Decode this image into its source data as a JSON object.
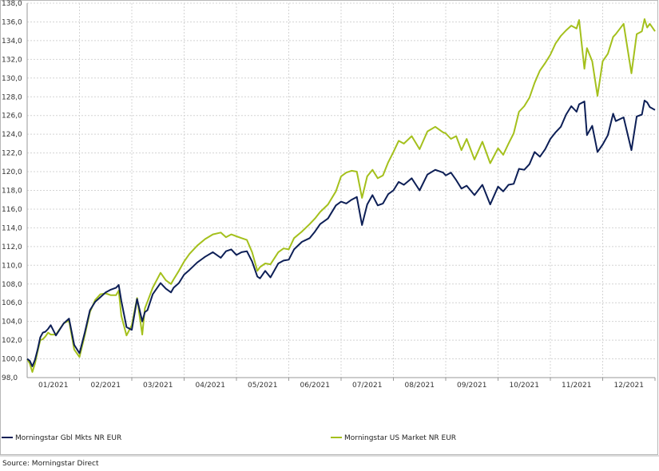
{
  "chart_data": {
    "type": "line",
    "title": "",
    "xlabel": "",
    "ylabel": "",
    "ylim": [
      98.0,
      138.0
    ],
    "ytick_labels": [
      "98,0",
      "100,0",
      "102,0",
      "104,0",
      "106,0",
      "108,0",
      "110,0",
      "112,0",
      "114,0",
      "116,0",
      "118,0",
      "120,0",
      "122,0",
      "124,0",
      "126,0",
      "128,0",
      "130,0",
      "132,0",
      "134,0",
      "136,0",
      "138,0"
    ],
    "xtick_labels": [
      "01/2021",
      "02/2021",
      "03/2021",
      "04/2021",
      "05/2021",
      "06/2021",
      "07/2021",
      "08/2021",
      "09/2021",
      "10/2021",
      "11/2021",
      "12/2021"
    ],
    "grid": true,
    "legend_position": "bottom",
    "x_units": "months (0 = start of January 2021, 12 = end of December 2021)",
    "series": [
      {
        "name": "Morningstar Gbl Mkts NR EUR",
        "color": "#0d1f56",
        "x": [
          0.0,
          0.05,
          0.1,
          0.15,
          0.2,
          0.25,
          0.3,
          0.35,
          0.4,
          0.45,
          0.55,
          0.7,
          0.8,
          0.9,
          1.0,
          1.1,
          1.2,
          1.3,
          1.4,
          1.5,
          1.6,
          1.7,
          1.75,
          1.8,
          1.9,
          2.0,
          2.1,
          2.2,
          2.25,
          2.3,
          2.4,
          2.55,
          2.65,
          2.75,
          2.8,
          2.9,
          3.0,
          3.1,
          3.25,
          3.4,
          3.55,
          3.7,
          3.8,
          3.9,
          4.0,
          4.1,
          4.2,
          4.3,
          4.4,
          4.45,
          4.55,
          4.65,
          4.8,
          4.9,
          5.0,
          5.1,
          5.25,
          5.4,
          5.5,
          5.6,
          5.75,
          5.9,
          6.0,
          6.1,
          6.2,
          6.3,
          6.4,
          6.5,
          6.6,
          6.7,
          6.8,
          6.9,
          7.0,
          7.1,
          7.2,
          7.35,
          7.5,
          7.65,
          7.8,
          7.95,
          8.0,
          8.1,
          8.2,
          8.3,
          8.4,
          8.55,
          8.7,
          8.85,
          9.0,
          9.1,
          9.2,
          9.3,
          9.4,
          9.5,
          9.6,
          9.7,
          9.8,
          9.9,
          10.0,
          10.1,
          10.2,
          10.3,
          10.4,
          10.5,
          10.55,
          10.65,
          10.7,
          10.8,
          10.9,
          11.0,
          11.1,
          11.2,
          11.25,
          11.4,
          11.55,
          11.65,
          11.75,
          11.8,
          11.85,
          11.9,
          12.0
        ],
        "values": [
          100.0,
          99.8,
          99.2,
          99.9,
          101.0,
          102.3,
          102.8,
          102.9,
          103.2,
          103.6,
          102.5,
          103.8,
          104.3,
          101.5,
          100.6,
          102.8,
          105.2,
          106.1,
          106.6,
          107.1,
          107.4,
          107.6,
          107.9,
          106.2,
          103.4,
          103.1,
          106.4,
          104.0,
          105.0,
          105.2,
          106.9,
          108.1,
          107.5,
          107.1,
          107.6,
          108.1,
          109.0,
          109.5,
          110.3,
          110.9,
          111.4,
          110.8,
          111.5,
          111.7,
          111.1,
          111.4,
          111.5,
          110.4,
          108.8,
          108.6,
          109.4,
          108.7,
          110.2,
          110.5,
          110.6,
          111.7,
          112.5,
          112.9,
          113.6,
          114.4,
          115.0,
          116.4,
          116.8,
          116.6,
          117.0,
          117.3,
          114.3,
          116.5,
          117.5,
          116.4,
          116.6,
          117.6,
          118.0,
          118.9,
          118.6,
          119.3,
          118.0,
          119.7,
          120.2,
          119.9,
          119.6,
          119.9,
          119.1,
          118.2,
          118.5,
          117.5,
          118.6,
          116.5,
          118.4,
          117.9,
          118.6,
          118.7,
          120.3,
          120.2,
          120.8,
          122.1,
          121.6,
          122.4,
          123.5,
          124.2,
          124.8,
          126.1,
          127.0,
          126.4,
          127.2,
          127.5,
          123.9,
          124.9,
          122.1,
          122.9,
          123.9,
          126.2,
          125.4,
          125.8,
          122.3,
          125.9,
          126.1,
          127.6,
          127.4,
          126.9,
          126.6
        ],
        "line_width": 2
      },
      {
        "name": "Morningstar US Market NR EUR",
        "color": "#a4c01c",
        "x": [
          0.0,
          0.05,
          0.1,
          0.15,
          0.2,
          0.25,
          0.3,
          0.35,
          0.4,
          0.45,
          0.55,
          0.7,
          0.8,
          0.9,
          1.0,
          1.1,
          1.2,
          1.3,
          1.4,
          1.5,
          1.6,
          1.7,
          1.75,
          1.8,
          1.9,
          2.0,
          2.1,
          2.2,
          2.25,
          2.3,
          2.4,
          2.55,
          2.65,
          2.75,
          2.8,
          2.9,
          3.0,
          3.1,
          3.25,
          3.4,
          3.55,
          3.7,
          3.8,
          3.9,
          4.0,
          4.1,
          4.2,
          4.3,
          4.4,
          4.45,
          4.55,
          4.65,
          4.8,
          4.9,
          5.0,
          5.1,
          5.25,
          5.4,
          5.5,
          5.6,
          5.75,
          5.9,
          6.0,
          6.1,
          6.2,
          6.3,
          6.4,
          6.5,
          6.6,
          6.7,
          6.8,
          6.9,
          7.0,
          7.1,
          7.2,
          7.35,
          7.5,
          7.65,
          7.8,
          7.95,
          8.0,
          8.1,
          8.2,
          8.3,
          8.4,
          8.55,
          8.7,
          8.85,
          9.0,
          9.1,
          9.2,
          9.3,
          9.4,
          9.5,
          9.6,
          9.7,
          9.8,
          9.9,
          10.0,
          10.1,
          10.2,
          10.3,
          10.4,
          10.5,
          10.55,
          10.65,
          10.7,
          10.8,
          10.9,
          11.0,
          11.1,
          11.2,
          11.25,
          11.4,
          11.55,
          11.65,
          11.75,
          11.8,
          11.85,
          11.9,
          12.0
        ],
        "values": [
          100.0,
          99.5,
          98.6,
          99.5,
          100.8,
          102.0,
          102.1,
          102.4,
          102.8,
          102.6,
          102.6,
          103.8,
          104.1,
          101.0,
          100.2,
          102.5,
          105.0,
          106.3,
          106.9,
          107.0,
          106.8,
          106.8,
          107.3,
          104.6,
          102.5,
          103.6,
          106.5,
          102.6,
          105.4,
          106.1,
          107.6,
          109.2,
          108.4,
          108.0,
          108.5,
          109.4,
          110.4,
          111.2,
          112.1,
          112.8,
          113.3,
          113.5,
          113.0,
          113.3,
          113.1,
          112.9,
          112.7,
          111.4,
          109.4,
          109.8,
          110.2,
          110.1,
          111.4,
          111.8,
          111.7,
          112.9,
          113.6,
          114.4,
          115.0,
          115.7,
          116.5,
          117.9,
          119.5,
          119.9,
          120.1,
          120.0,
          117.2,
          119.5,
          120.2,
          119.3,
          119.6,
          121.0,
          122.1,
          123.3,
          123.0,
          123.8,
          122.4,
          124.3,
          124.8,
          124.2,
          124.1,
          123.5,
          123.8,
          122.3,
          123.5,
          121.3,
          123.2,
          120.9,
          122.5,
          121.8,
          123.0,
          124.1,
          126.4,
          127.0,
          127.9,
          129.5,
          130.8,
          131.6,
          132.5,
          133.7,
          134.5,
          135.1,
          135.6,
          135.3,
          136.2,
          131.0,
          133.2,
          131.8,
          128.1,
          131.8,
          132.6,
          134.4,
          134.7,
          135.8,
          130.5,
          134.7,
          135.0,
          136.3,
          135.4,
          135.8,
          135.0
        ],
        "line_width": 2
      }
    ],
    "source": "Source: Morningstar Direct"
  }
}
